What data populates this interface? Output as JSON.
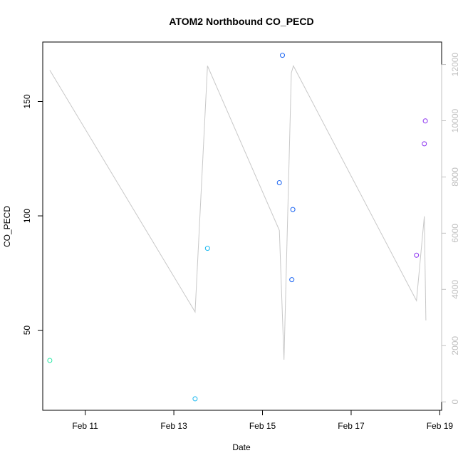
{
  "chart_data": {
    "type": "scatter",
    "title": "ATOM2 Northbound CO_PECD",
    "xlabel": "Date",
    "ylabel": "CO_PECD",
    "x_ticks": [
      "Feb 11",
      "Feb 13",
      "Feb 15",
      "Feb 17",
      "Feb 19"
    ],
    "y_ticks": [
      "50",
      "100",
      "150"
    ],
    "y2_ticks": [
      "0",
      "2000",
      "4000",
      "6000",
      "8000",
      "10000",
      "12000"
    ],
    "xlim": [
      "2024-02-10T01:00",
      "2024-02-19T01:00"
    ],
    "ylim": [
      15,
      176
    ],
    "y2lim": [
      -300,
      12800
    ],
    "grid": false,
    "colors": {
      "axis": "#000000",
      "secondary_axis": "#c0c0c0",
      "line": "#c8c8c8"
    },
    "points": [
      {
        "x": "2024-02-10T04:48",
        "y": 36.8,
        "color": "#2fe9a8"
      },
      {
        "x": "2024-02-13T11:31",
        "y": 20.0,
        "color": "#19b8f0"
      },
      {
        "x": "2024-02-13T18:14",
        "y": 85.8,
        "color": "#19b8f0"
      },
      {
        "x": "2024-02-15T09:07",
        "y": 114.5,
        "color": "#1a64f2"
      },
      {
        "x": "2024-02-15T10:48",
        "y": 170.2,
        "color": "#1a64f2"
      },
      {
        "x": "2024-02-15T15:53",
        "y": 72.1,
        "color": "#1a64f2"
      },
      {
        "x": "2024-02-15T16:26",
        "y": 102.8,
        "color": "#1a64f2"
      },
      {
        "x": "2024-02-18T11:24",
        "y": 82.8,
        "color": "#8a2ef0"
      },
      {
        "x": "2024-02-18T15:38",
        "y": 131.5,
        "color": "#8a2ef0"
      },
      {
        "x": "2024-02-18T16:11",
        "y": 141.5,
        "color": "#8a2ef0"
      }
    ],
    "line_series": {
      "axis": "right",
      "points": [
        {
          "x": "2024-02-10T04:48",
          "y": 11800
        },
        {
          "x": "2024-02-13T11:31",
          "y": 3200
        },
        {
          "x": "2024-02-13T18:14",
          "y": 11950
        },
        {
          "x": "2024-02-15T09:07",
          "y": 6100
        },
        {
          "x": "2024-02-15T11:38",
          "y": 1500
        },
        {
          "x": "2024-02-15T15:36",
          "y": 11700
        },
        {
          "x": "2024-02-15T16:43",
          "y": 11950
        },
        {
          "x": "2024-02-18T11:24",
          "y": 3600
        },
        {
          "x": "2024-02-18T15:38",
          "y": 6600
        },
        {
          "x": "2024-02-18T16:28",
          "y": 2900
        }
      ]
    }
  }
}
